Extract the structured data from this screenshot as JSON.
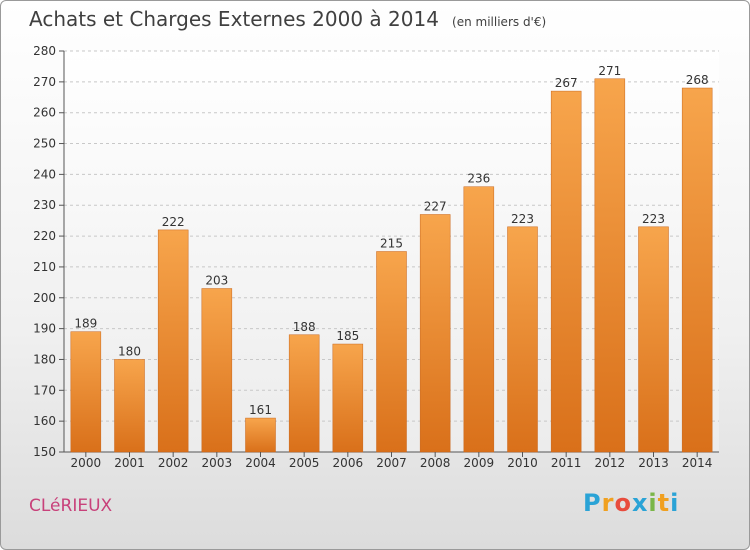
{
  "header": {
    "title": "Achats et Charges Externes 2000 à 2014",
    "unit": "(en milliers d'€)"
  },
  "footer": {
    "city": "CLéRIEUX",
    "logo_letters": [
      "P",
      "r",
      "o",
      "x",
      "i",
      "t",
      "i"
    ],
    "logo_colors": [
      "#2aa3d6",
      "#f0a020",
      "#e84c3d",
      "#2aa3d6",
      "#7ab648",
      "#f0a020",
      "#2aa3d6"
    ]
  },
  "chart_data": {
    "type": "bar",
    "categories": [
      "2000",
      "2001",
      "2002",
      "2003",
      "2004",
      "2005",
      "2006",
      "2007",
      "2008",
      "2009",
      "2010",
      "2011",
      "2012",
      "2013",
      "2014"
    ],
    "values": [
      189,
      180,
      222,
      203,
      161,
      188,
      185,
      215,
      227,
      236,
      223,
      267,
      271,
      223,
      268
    ],
    "data_labels": [
      "189",
      "180",
      "222",
      "203",
      "161",
      "188",
      "185",
      "215",
      "227",
      "236",
      "223",
      "267",
      "271",
      "223",
      "268"
    ],
    "yticks": [
      "150",
      "160",
      "170",
      "180",
      "190",
      "200",
      "210",
      "220",
      "230",
      "240",
      "250",
      "260",
      "270",
      "280"
    ],
    "ylim": [
      150,
      280
    ],
    "grid": true,
    "bar_color": "#f08c2a"
  }
}
